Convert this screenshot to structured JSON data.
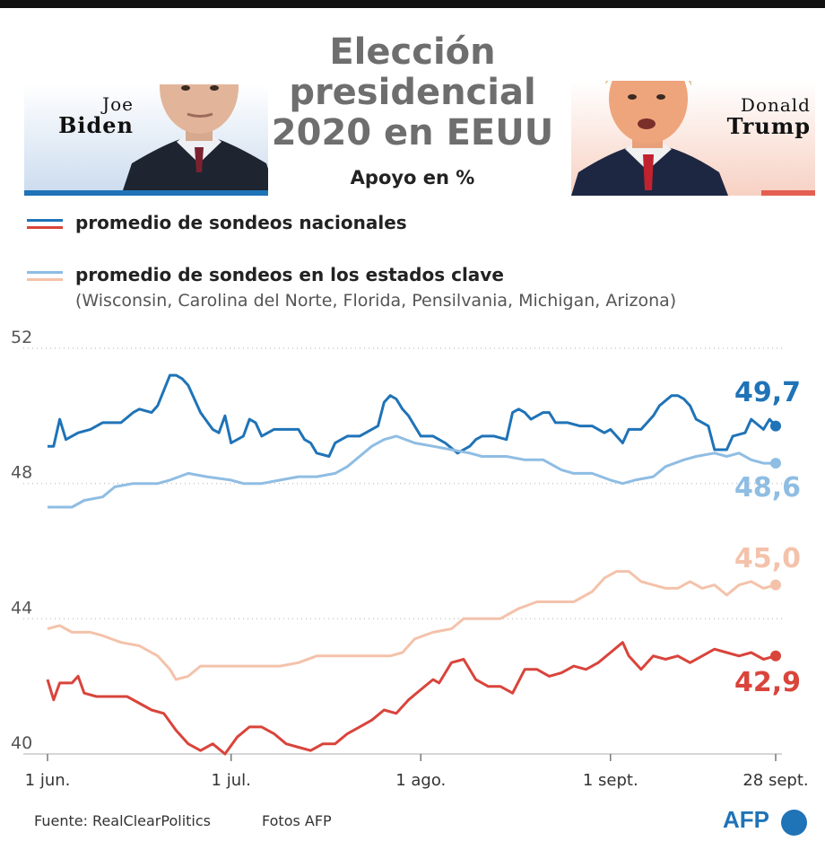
{
  "header": {
    "title": "Elección\npresidencial\n2020 en EEUU",
    "subtitle": "Apoyo en %"
  },
  "candidates": {
    "biden": {
      "first": "Joe",
      "last": "Biden",
      "photo": "portrait-joe-biden"
    },
    "trump": {
      "first": "Donald",
      "last": "Trump",
      "photo": "portrait-donald-trump"
    }
  },
  "legend": {
    "national": "promedio de sondeos nacionales",
    "swing": "promedio de sondeos en los estados clave",
    "swing_note": "(Wisconsin, Carolina del Norte, Florida, Pensilvania, Michigan, Arizona)"
  },
  "footer": {
    "source": "Fuente: RealClearPolitics",
    "photos": "Fotos AFP",
    "brand": "AFP"
  },
  "colors": {
    "biden_national": "#1f73b7",
    "biden_swing": "#8fbde3",
    "trump_national": "#d9443b",
    "trump_swing": "#f4c2aa",
    "grid": "#c8c8c8"
  },
  "chart_data": {
    "type": "line",
    "x_start": "1 jun.",
    "x_end": "28 sept.",
    "x_ticks": [
      "1 jun.",
      "1 jul.",
      "1 ago.",
      "1 sept.",
      "28 sept."
    ],
    "x_tick_days": [
      0,
      30,
      61,
      92,
      119
    ],
    "ylim": [
      40,
      52
    ],
    "y_ticks": [
      "52",
      "48",
      "44",
      "40"
    ],
    "y_tick_values": [
      52,
      48,
      44,
      40
    ],
    "grid": true,
    "series": [
      {
        "key": "biden_national",
        "color": "#1f73b7",
        "end_label": "49,7",
        "points": [
          [
            0,
            49.1
          ],
          [
            1,
            49.1
          ],
          [
            2,
            49.9
          ],
          [
            3,
            49.3
          ],
          [
            5,
            49.5
          ],
          [
            7,
            49.6
          ],
          [
            9,
            49.8
          ],
          [
            12,
            49.8
          ],
          [
            14,
            50.1
          ],
          [
            15,
            50.2
          ],
          [
            17,
            50.1
          ],
          [
            18,
            50.3
          ],
          [
            20,
            51.2
          ],
          [
            21,
            51.2
          ],
          [
            22,
            51.1
          ],
          [
            23,
            50.9
          ],
          [
            25,
            50.1
          ],
          [
            27,
            49.6
          ],
          [
            28,
            49.5
          ],
          [
            29,
            50.0
          ],
          [
            30,
            49.2
          ],
          [
            32,
            49.4
          ],
          [
            33,
            49.9
          ],
          [
            34,
            49.8
          ],
          [
            35,
            49.4
          ],
          [
            37,
            49.6
          ],
          [
            39,
            49.6
          ],
          [
            41,
            49.6
          ],
          [
            42,
            49.3
          ],
          [
            43,
            49.2
          ],
          [
            44,
            48.9
          ],
          [
            46,
            48.8
          ],
          [
            47,
            49.2
          ],
          [
            49,
            49.4
          ],
          [
            51,
            49.4
          ],
          [
            53,
            49.6
          ],
          [
            54,
            49.7
          ],
          [
            55,
            50.4
          ],
          [
            56,
            50.6
          ],
          [
            57,
            50.5
          ],
          [
            58,
            50.2
          ],
          [
            59,
            50.0
          ],
          [
            61,
            49.4
          ],
          [
            63,
            49.4
          ],
          [
            65,
            49.2
          ],
          [
            67,
            48.9
          ],
          [
            69,
            49.1
          ],
          [
            70,
            49.3
          ],
          [
            71,
            49.4
          ],
          [
            73,
            49.4
          ],
          [
            75,
            49.3
          ],
          [
            76,
            50.1
          ],
          [
            77,
            50.2
          ],
          [
            78,
            50.1
          ],
          [
            79,
            49.9
          ],
          [
            81,
            50.1
          ],
          [
            82,
            50.1
          ],
          [
            83,
            49.8
          ],
          [
            85,
            49.8
          ],
          [
            87,
            49.7
          ],
          [
            89,
            49.7
          ],
          [
            91,
            49.5
          ],
          [
            92,
            49.6
          ],
          [
            94,
            49.2
          ],
          [
            95,
            49.6
          ],
          [
            97,
            49.6
          ],
          [
            99,
            50.0
          ],
          [
            100,
            50.3
          ],
          [
            102,
            50.6
          ],
          [
            103,
            50.6
          ],
          [
            104,
            50.5
          ],
          [
            105,
            50.3
          ],
          [
            106,
            49.9
          ],
          [
            108,
            49.7
          ],
          [
            109,
            49.0
          ],
          [
            111,
            49.0
          ],
          [
            112,
            49.4
          ],
          [
            114,
            49.5
          ],
          [
            115,
            49.9
          ],
          [
            117,
            49.6
          ],
          [
            118,
            49.9
          ],
          [
            119,
            49.7
          ]
        ]
      },
      {
        "key": "biden_swing",
        "color": "#8fbde3",
        "end_label": "48,6",
        "points": [
          [
            0,
            47.3
          ],
          [
            4,
            47.3
          ],
          [
            6,
            47.5
          ],
          [
            9,
            47.6
          ],
          [
            11,
            47.9
          ],
          [
            14,
            48.0
          ],
          [
            18,
            48.0
          ],
          [
            20,
            48.1
          ],
          [
            23,
            48.3
          ],
          [
            26,
            48.2
          ],
          [
            30,
            48.1
          ],
          [
            32,
            48.0
          ],
          [
            35,
            48.0
          ],
          [
            38,
            48.1
          ],
          [
            41,
            48.2
          ],
          [
            44,
            48.2
          ],
          [
            47,
            48.3
          ],
          [
            49,
            48.5
          ],
          [
            51,
            48.8
          ],
          [
            53,
            49.1
          ],
          [
            55,
            49.3
          ],
          [
            57,
            49.4
          ],
          [
            60,
            49.2
          ],
          [
            63,
            49.1
          ],
          [
            66,
            49.0
          ],
          [
            69,
            48.9
          ],
          [
            71,
            48.8
          ],
          [
            75,
            48.8
          ],
          [
            78,
            48.7
          ],
          [
            81,
            48.7
          ],
          [
            84,
            48.4
          ],
          [
            86,
            48.3
          ],
          [
            89,
            48.3
          ],
          [
            92,
            48.1
          ],
          [
            94,
            48.0
          ],
          [
            96,
            48.1
          ],
          [
            99,
            48.2
          ],
          [
            101,
            48.5
          ],
          [
            104,
            48.7
          ],
          [
            106,
            48.8
          ],
          [
            109,
            48.9
          ],
          [
            111,
            48.8
          ],
          [
            113,
            48.9
          ],
          [
            115,
            48.7
          ],
          [
            117,
            48.6
          ],
          [
            119,
            48.6
          ]
        ]
      },
      {
        "key": "trump_swing",
        "color": "#f4c2aa",
        "end_label": "45,0",
        "points": [
          [
            0,
            43.7
          ],
          [
            2,
            43.8
          ],
          [
            4,
            43.6
          ],
          [
            7,
            43.6
          ],
          [
            9,
            43.5
          ],
          [
            12,
            43.3
          ],
          [
            15,
            43.2
          ],
          [
            18,
            42.9
          ],
          [
            20,
            42.5
          ],
          [
            21,
            42.2
          ],
          [
            23,
            42.3
          ],
          [
            25,
            42.6
          ],
          [
            28,
            42.6
          ],
          [
            31,
            42.6
          ],
          [
            35,
            42.6
          ],
          [
            38,
            42.6
          ],
          [
            41,
            42.7
          ],
          [
            44,
            42.9
          ],
          [
            47,
            42.9
          ],
          [
            50,
            42.9
          ],
          [
            53,
            42.9
          ],
          [
            56,
            42.9
          ],
          [
            58,
            43.0
          ],
          [
            60,
            43.4
          ],
          [
            63,
            43.6
          ],
          [
            66,
            43.7
          ],
          [
            68,
            44.0
          ],
          [
            71,
            44.0
          ],
          [
            74,
            44.0
          ],
          [
            77,
            44.3
          ],
          [
            80,
            44.5
          ],
          [
            83,
            44.5
          ],
          [
            86,
            44.5
          ],
          [
            89,
            44.8
          ],
          [
            91,
            45.2
          ],
          [
            93,
            45.4
          ],
          [
            95,
            45.4
          ],
          [
            97,
            45.1
          ],
          [
            99,
            45.0
          ],
          [
            101,
            44.9
          ],
          [
            103,
            44.9
          ],
          [
            105,
            45.1
          ],
          [
            107,
            44.9
          ],
          [
            109,
            45.0
          ],
          [
            111,
            44.7
          ],
          [
            113,
            45.0
          ],
          [
            115,
            45.1
          ],
          [
            117,
            44.9
          ],
          [
            119,
            45.0
          ]
        ]
      },
      {
        "key": "trump_national",
        "color": "#d9443b",
        "end_label": "42,9",
        "points": [
          [
            0,
            42.2
          ],
          [
            1,
            41.6
          ],
          [
            2,
            42.1
          ],
          [
            4,
            42.1
          ],
          [
            5,
            42.3
          ],
          [
            6,
            41.8
          ],
          [
            8,
            41.7
          ],
          [
            10,
            41.7
          ],
          [
            13,
            41.7
          ],
          [
            15,
            41.5
          ],
          [
            17,
            41.3
          ],
          [
            19,
            41.2
          ],
          [
            21,
            40.7
          ],
          [
            23,
            40.3
          ],
          [
            25,
            40.1
          ],
          [
            27,
            40.3
          ],
          [
            29,
            40.0
          ],
          [
            31,
            40.5
          ],
          [
            33,
            40.8
          ],
          [
            35,
            40.8
          ],
          [
            37,
            40.6
          ],
          [
            39,
            40.3
          ],
          [
            41,
            40.2
          ],
          [
            43,
            40.1
          ],
          [
            45,
            40.3
          ],
          [
            47,
            40.3
          ],
          [
            49,
            40.6
          ],
          [
            51,
            40.8
          ],
          [
            53,
            41.0
          ],
          [
            55,
            41.3
          ],
          [
            57,
            41.2
          ],
          [
            59,
            41.6
          ],
          [
            61,
            41.9
          ],
          [
            63,
            42.2
          ],
          [
            64,
            42.1
          ],
          [
            66,
            42.7
          ],
          [
            68,
            42.8
          ],
          [
            70,
            42.2
          ],
          [
            72,
            42.0
          ],
          [
            74,
            42.0
          ],
          [
            76,
            41.8
          ],
          [
            78,
            42.5
          ],
          [
            80,
            42.5
          ],
          [
            82,
            42.3
          ],
          [
            84,
            42.4
          ],
          [
            86,
            42.6
          ],
          [
            88,
            42.5
          ],
          [
            90,
            42.7
          ],
          [
            92,
            43.0
          ],
          [
            94,
            43.3
          ],
          [
            95,
            42.9
          ],
          [
            97,
            42.5
          ],
          [
            99,
            42.9
          ],
          [
            101,
            42.8
          ],
          [
            103,
            42.9
          ],
          [
            105,
            42.7
          ],
          [
            107,
            42.9
          ],
          [
            109,
            43.1
          ],
          [
            111,
            43.0
          ],
          [
            113,
            42.9
          ],
          [
            115,
            43.0
          ],
          [
            117,
            42.8
          ],
          [
            119,
            42.9
          ]
        ]
      }
    ]
  }
}
